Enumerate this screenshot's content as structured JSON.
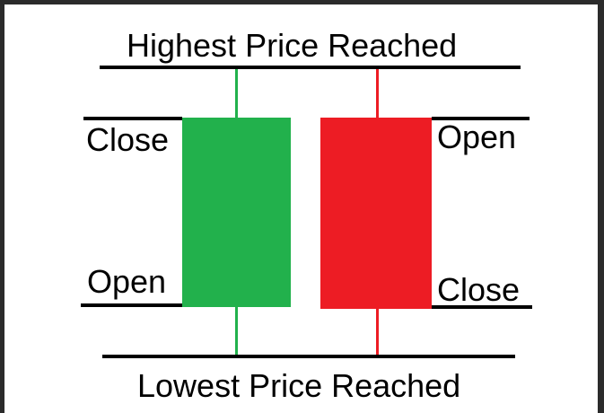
{
  "diagram": {
    "top_label": "Highest Price Reached",
    "bottom_label": "Lowest Price Reached",
    "bull_candle": {
      "close_label": "Close",
      "open_label": "Open",
      "color": "#22b14c"
    },
    "bear_candle": {
      "open_label": "Open",
      "close_label": "Close",
      "color": "#ed1c24"
    }
  }
}
